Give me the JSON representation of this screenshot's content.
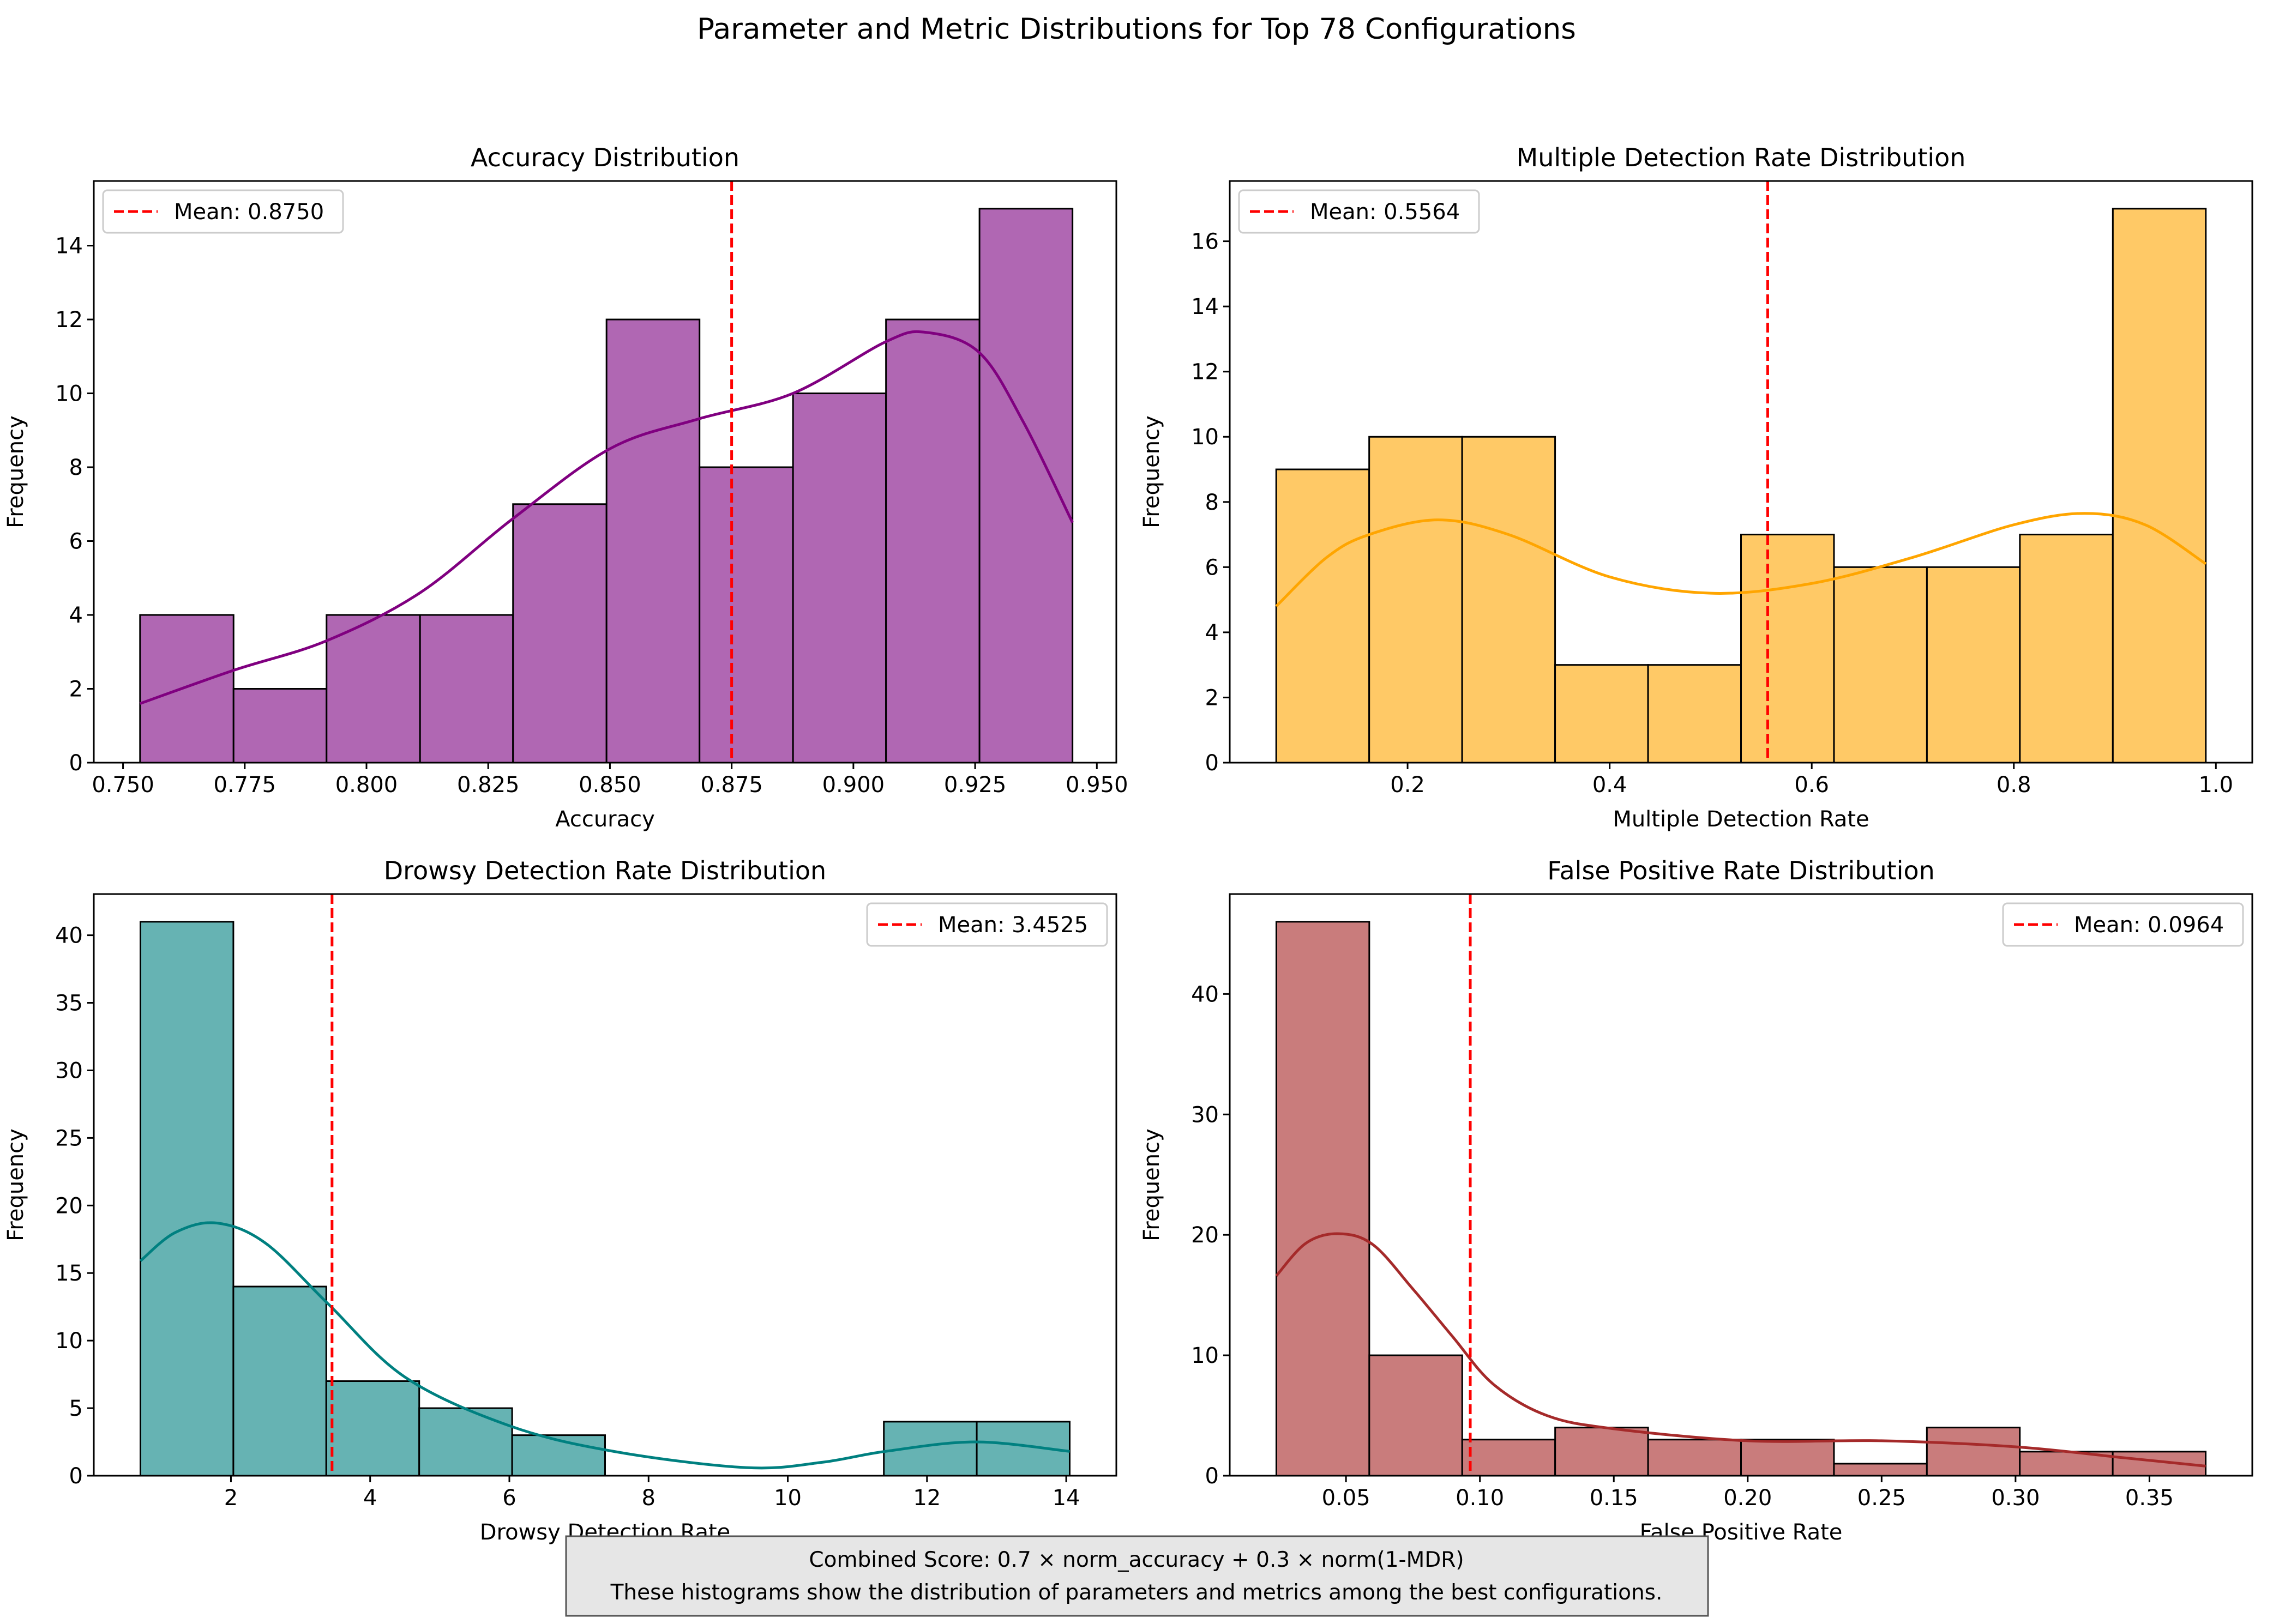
{
  "figure": {
    "suptitle": "Parameter and Metric Distributions for Top 78 Configurations",
    "footnote": [
      "Combined Score: 0.7 × norm_accuracy + 0.3 × norm(1-MDR)",
      "These histograms show the distribution of parameters and metrics among the best configurations."
    ]
  },
  "chart_data": [
    {
      "type": "bar",
      "subtype": "histogram",
      "title": "Accuracy Distribution",
      "xlabel": "Accuracy",
      "ylabel": "Frequency",
      "bin_edges": [
        0.7535,
        0.7727,
        0.7918,
        0.811,
        0.8301,
        0.8493,
        0.8684,
        0.8876,
        0.9067,
        0.9259,
        0.945
      ],
      "values": [
        4,
        2,
        4,
        4,
        7,
        12,
        8,
        10,
        12,
        15
      ],
      "xlim": [
        0.744,
        0.954
      ],
      "ylim": [
        0,
        15.75
      ],
      "xticks": [
        0.75,
        0.775,
        0.8,
        0.825,
        0.85,
        0.875,
        0.9,
        0.925,
        0.95
      ],
      "xtick_labels": [
        "0.750",
        "0.775",
        "0.800",
        "0.825",
        "0.850",
        "0.875",
        "0.900",
        "0.925",
        "0.950"
      ],
      "yticks": [
        0,
        2,
        4,
        6,
        8,
        10,
        12,
        14
      ],
      "mean": 0.875,
      "mean_label": "Mean: 0.8750",
      "legend_loc": "upper-left",
      "kde": {
        "x": [
          0.7535,
          0.7727,
          0.7918,
          0.811,
          0.83,
          0.85,
          0.868,
          0.8876,
          0.9067,
          0.915,
          0.9259,
          0.935,
          0.945
        ],
        "y": [
          1.6,
          2.5,
          3.3,
          4.6,
          6.6,
          8.5,
          9.3,
          10.0,
          11.4,
          11.65,
          11.1,
          9.2,
          6.5
        ]
      },
      "colors": {
        "bar": "#b067b3",
        "kde": "#800080",
        "mean": "#ff0000"
      }
    },
    {
      "type": "bar",
      "subtype": "histogram",
      "title": "Multiple Detection Rate Distribution",
      "xlabel": "Multiple Detection Rate",
      "ylabel": "Frequency",
      "bin_edges": [
        0.07,
        0.162,
        0.254,
        0.346,
        0.438,
        0.53,
        0.622,
        0.714,
        0.806,
        0.898,
        0.99
      ],
      "values": [
        9,
        10,
        10,
        3,
        3,
        7,
        6,
        6,
        7,
        17
      ],
      "xlim": [
        0.024,
        1.036
      ],
      "ylim": [
        0,
        17.85
      ],
      "xticks": [
        0.2,
        0.4,
        0.6,
        0.8,
        1.0
      ],
      "xtick_labels": [
        "0.2",
        "0.4",
        "0.6",
        "0.8",
        "1.0"
      ],
      "yticks": [
        0,
        2,
        4,
        6,
        8,
        10,
        12,
        14,
        16
      ],
      "mean": 0.5564,
      "mean_label": "Mean: 0.5564",
      "legend_loc": "upper-left",
      "kde": {
        "x": [
          0.07,
          0.12,
          0.162,
          0.23,
          0.3,
          0.4,
          0.5,
          0.6,
          0.7,
          0.8,
          0.87,
          0.93,
          0.99
        ],
        "y": [
          4.8,
          6.3,
          7.0,
          7.45,
          7.0,
          5.7,
          5.2,
          5.5,
          6.3,
          7.3,
          7.65,
          7.3,
          6.1
        ]
      },
      "colors": {
        "bar": "#ffc966",
        "kde": "#ffa500",
        "mean": "#ff0000"
      }
    },
    {
      "type": "bar",
      "subtype": "histogram",
      "title": "Drowsy Detection Rate Distribution",
      "xlabel": "Drowsy Detection Rate",
      "ylabel": "Frequency",
      "bin_edges": [
        0.7,
        2.035,
        3.37,
        4.705,
        6.04,
        7.375,
        8.71,
        10.045,
        11.38,
        12.715,
        14.05
      ],
      "values": [
        41,
        14,
        7,
        5,
        3,
        0,
        0,
        0,
        4,
        4
      ],
      "xlim": [
        0.03,
        14.72
      ],
      "ylim": [
        0,
        43.05
      ],
      "xticks": [
        2,
        4,
        6,
        8,
        10,
        12,
        14
      ],
      "xtick_labels": [
        "2",
        "4",
        "6",
        "8",
        "10",
        "12",
        "14"
      ],
      "yticks": [
        0,
        5,
        10,
        15,
        20,
        25,
        30,
        35,
        40
      ],
      "mean": 3.4525,
      "mean_label": "Mean: 3.4525",
      "legend_loc": "upper-right",
      "kde": {
        "x": [
          0.7,
          1.2,
          1.8,
          2.5,
          3.4,
          4.5,
          6.0,
          7.5,
          9.4,
          10.5,
          11.4,
          12.7,
          14.05
        ],
        "y": [
          15.9,
          18.0,
          18.7,
          17.2,
          12.7,
          7.3,
          3.7,
          1.8,
          0.6,
          1.0,
          1.8,
          2.5,
          1.8
        ]
      },
      "colors": {
        "bar": "#66b3b3",
        "kde": "#008080",
        "mean": "#ff0000"
      }
    },
    {
      "type": "bar",
      "subtype": "histogram",
      "title": "False Positive Rate Distribution",
      "xlabel": "False Positive Rate",
      "ylabel": "Frequency",
      "bin_edges": [
        0.024,
        0.0587,
        0.0934,
        0.1281,
        0.1628,
        0.1975,
        0.2322,
        0.2669,
        0.3016,
        0.3363,
        0.371
      ],
      "values": [
        46,
        10,
        3,
        4,
        3,
        3,
        1,
        4,
        2,
        2
      ],
      "xlim": [
        0.0066,
        0.3884
      ],
      "ylim": [
        0,
        48.3
      ],
      "xticks": [
        0.05,
        0.1,
        0.15,
        0.2,
        0.25,
        0.3,
        0.35
      ],
      "xtick_labels": [
        "0.05",
        "0.10",
        "0.15",
        "0.20",
        "0.25",
        "0.30",
        "0.35"
      ],
      "yticks": [
        0,
        10,
        20,
        30,
        40
      ],
      "mean": 0.0964,
      "mean_label": "Mean: 0.0964",
      "legend_loc": "upper-right",
      "kde": {
        "x": [
          0.024,
          0.035,
          0.047,
          0.06,
          0.075,
          0.09,
          0.105,
          0.125,
          0.15,
          0.2,
          0.25,
          0.3,
          0.34,
          0.371
        ],
        "y": [
          16.6,
          19.3,
          20.1,
          19.2,
          15.5,
          11.5,
          7.6,
          5.0,
          3.9,
          2.9,
          2.9,
          2.4,
          1.5,
          0.8
        ]
      },
      "colors": {
        "bar": "#c97c7c",
        "kde": "#a52a2a",
        "mean": "#ff0000"
      }
    }
  ]
}
